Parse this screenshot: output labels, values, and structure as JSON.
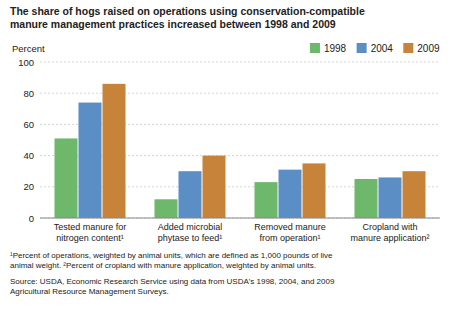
{
  "chart_data": {
    "type": "bar",
    "title": "The share of hogs raised on operations using conservation-compatible\nmanure management practices increased between 1998 and 2009",
    "ylabel": "Percent",
    "categories": [
      "Tested manure for\nnitrogen content¹",
      "Added microbial\nphytase to feed¹",
      "Removed manure\nfrom operation¹",
      "Cropland with\nmanure application²"
    ],
    "series": [
      {
        "name": "1998",
        "color": "#6db86b",
        "values": [
          51,
          12,
          23,
          25
        ]
      },
      {
        "name": "2004",
        "color": "#5b8ec4",
        "values": [
          74,
          30,
          31,
          26
        ]
      },
      {
        "name": "2009",
        "color": "#c8833a",
        "values": [
          86,
          40,
          35,
          30
        ]
      }
    ],
    "ylim": [
      0,
      100
    ],
    "yticks": [
      0,
      20,
      40,
      60,
      80,
      100
    ],
    "grid": true,
    "legend": "upper right",
    "annotations": [
      "¹Percent of operations, weighted by animal units, which are defined as 1,000 pounds of live\nanimal weight. ²Percent of cropland with manure application, weighted by animal units.",
      "Source: USDA, Economic Research Service using data from USDA's 1998, 2004, and 2009\nAgricultural Resource Management Surveys."
    ]
  }
}
